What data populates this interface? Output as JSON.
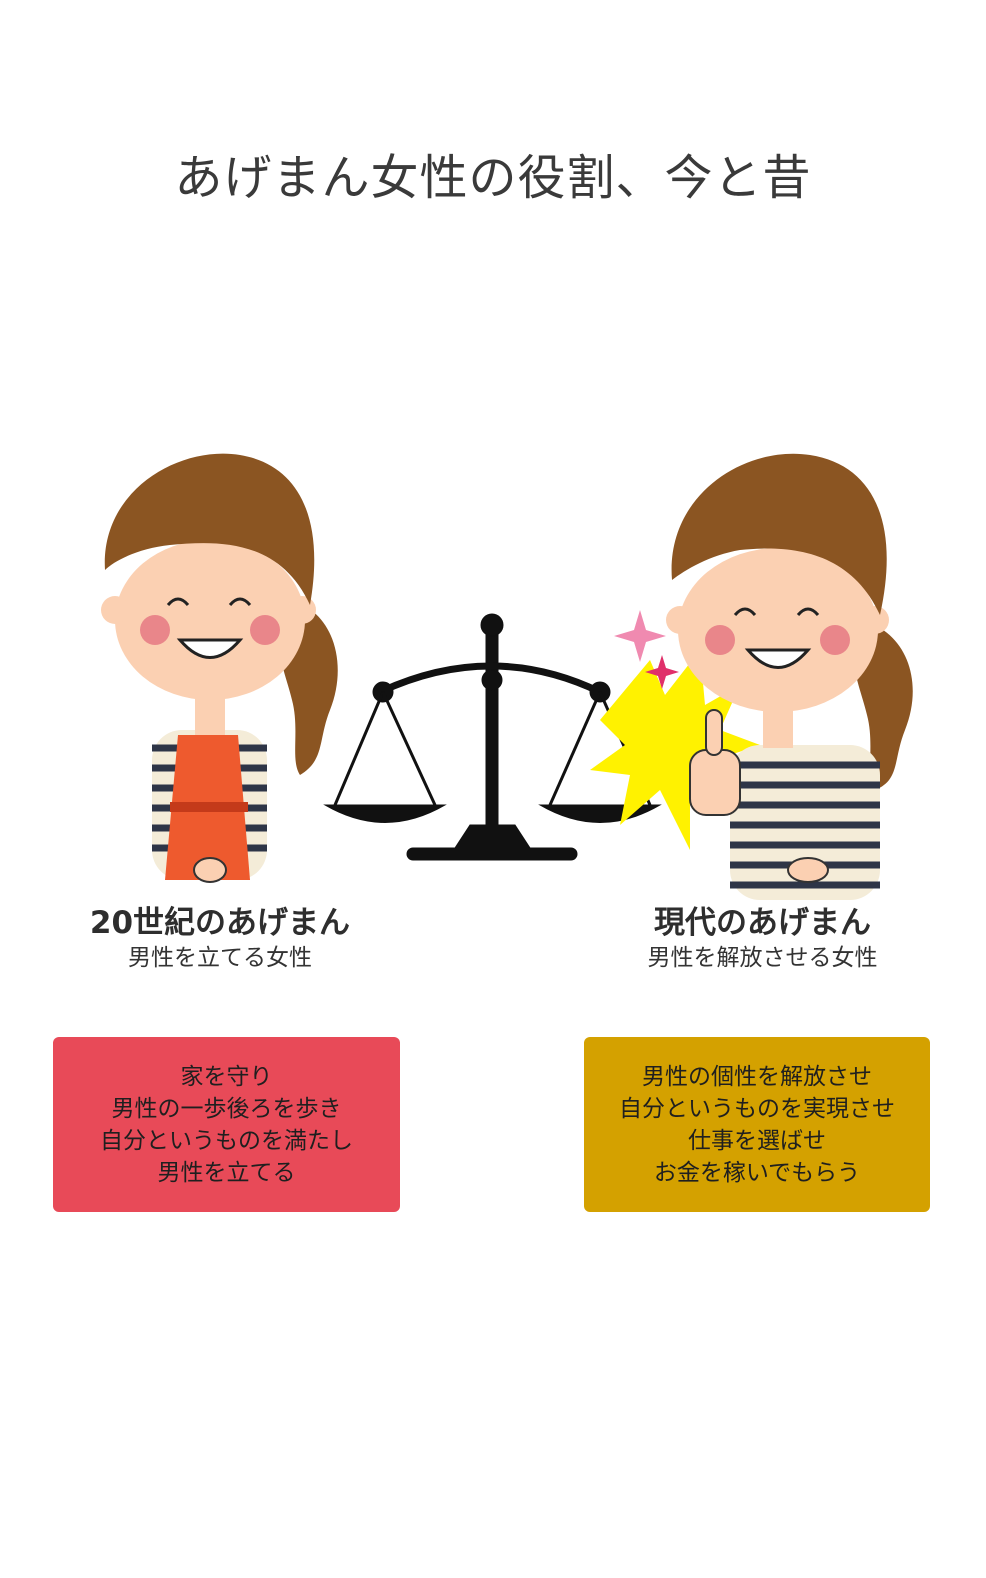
{
  "title": "あげまん女性の役割、今と昔",
  "colors": {
    "left_box": "#e84a58",
    "right_box": "#d4a100",
    "hair": "#8b5522",
    "skin": "#fbd0b2",
    "apron": "#ee5a2e",
    "scale": "#111111",
    "burst": "#fff200"
  },
  "icons": {
    "left_figure": "woman-apron-icon",
    "center": "balance-scale-icon",
    "right_figure": "woman-thumbs-up-icon"
  },
  "left": {
    "heading": "20世紀のあげまん",
    "subheading": "男性を立てる女性",
    "lines": [
      "家を守り",
      "男性の一歩後ろを歩き",
      "自分というものを満たし",
      "男性を立てる"
    ]
  },
  "right": {
    "heading": "現代のあげまん",
    "subheading": "男性を解放させる女性",
    "lines": [
      "男性の個性を解放させ",
      "自分というものを実現させ",
      "仕事を選ばせ",
      "お金を稼いでもらう"
    ]
  }
}
